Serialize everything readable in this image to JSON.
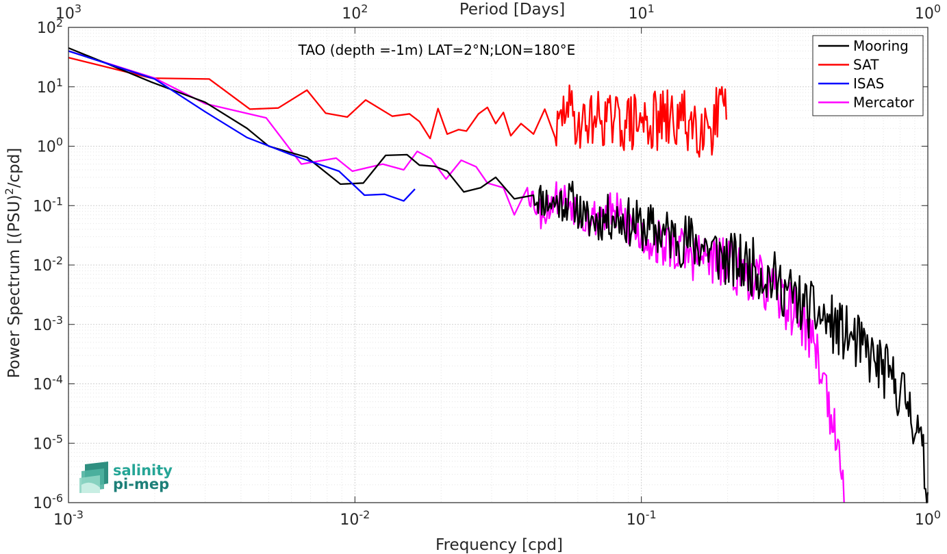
{
  "chart_data": {
    "type": "line",
    "title": "",
    "annotation": "TAO (depth =-1m) LAT=2°N;LON=180°E",
    "xlabel": "Frequency [cpd]",
    "ylabel": "Power Spectrum [(PSU)²/cpd]",
    "x2label": "Period [Days]",
    "xscale": "log",
    "yscale": "log",
    "xlim": [
      0.001,
      1
    ],
    "ylim": [
      1e-06,
      100
    ],
    "grid": true,
    "minor_grid": true,
    "legend_position": "top-right",
    "x_ticks": [
      {
        "value": 0.001,
        "base": "10",
        "exp": "-3"
      },
      {
        "value": 0.01,
        "base": "10",
        "exp": "-2"
      },
      {
        "value": 0.1,
        "base": "10",
        "exp": "-1"
      },
      {
        "value": 1,
        "base": "10",
        "exp": "0"
      }
    ],
    "x2_ticks": [
      {
        "value": 0.001,
        "base": "10",
        "exp": "3"
      },
      {
        "value": 0.01,
        "base": "10",
        "exp": "2"
      },
      {
        "value": 0.1,
        "base": "10",
        "exp": "1"
      },
      {
        "value": 1,
        "base": "10",
        "exp": "0"
      }
    ],
    "y_ticks": [
      {
        "value": 100,
        "base": "10",
        "exp": "2"
      },
      {
        "value": 10,
        "base": "10",
        "exp": "1"
      },
      {
        "value": 1,
        "base": "10",
        "exp": "0"
      },
      {
        "value": 0.1,
        "base": "10",
        "exp": "-1"
      },
      {
        "value": 0.01,
        "base": "10",
        "exp": "-2"
      },
      {
        "value": 0.001,
        "base": "10",
        "exp": "-3"
      },
      {
        "value": 0.0001,
        "base": "10",
        "exp": "-4"
      },
      {
        "value": 1e-05,
        "base": "10",
        "exp": "-5"
      },
      {
        "value": 1e-06,
        "base": "10",
        "exp": "-6"
      }
    ],
    "series": [
      {
        "name": "Mooring",
        "color": "#000000",
        "anchors": [
          [
            0.001,
            45
          ],
          [
            0.00135,
            25
          ],
          [
            0.00195,
            12
          ],
          [
            0.003,
            5.5
          ],
          [
            0.0042,
            2
          ],
          [
            0.005,
            1
          ],
          [
            0.0068,
            0.65
          ],
          [
            0.0089,
            0.23
          ],
          [
            0.0107,
            0.24
          ],
          [
            0.0128,
            0.7
          ],
          [
            0.0152,
            0.72
          ],
          [
            0.0168,
            0.48
          ],
          [
            0.019,
            0.46
          ],
          [
            0.021,
            0.38
          ],
          [
            0.024,
            0.17
          ],
          [
            0.0275,
            0.2
          ],
          [
            0.031,
            0.3
          ],
          [
            0.036,
            0.13
          ],
          [
            0.042,
            0.15
          ],
          [
            0.048,
            0.11
          ],
          [
            0.058,
            0.12
          ],
          [
            0.064,
            0.055
          ],
          [
            0.08,
            0.065
          ],
          [
            0.1,
            0.045
          ],
          [
            0.13,
            0.03
          ],
          [
            0.17,
            0.02
          ],
          [
            0.2,
            0.012
          ],
          [
            0.25,
            0.009
          ],
          [
            0.3,
            0.005
          ],
          [
            0.37,
            0.002
          ],
          [
            0.45,
            0.0011
          ],
          [
            0.55,
            0.00055
          ],
          [
            0.65,
            0.00025
          ],
          [
            0.75,
            0.00012
          ],
          [
            0.85,
            5e-05
          ],
          [
            0.93,
            1.5e-05
          ],
          [
            1,
            1.5e-06
          ]
        ],
        "noise_start": 0.04,
        "noise_amp": 0.5
      },
      {
        "name": "SAT",
        "color": "#ff0000",
        "anchors": [
          [
            0.001,
            31
          ],
          [
            0.00195,
            14
          ],
          [
            0.0031,
            13.5
          ],
          [
            0.0043,
            4.2
          ],
          [
            0.0054,
            4.4
          ],
          [
            0.0068,
            8.8
          ],
          [
            0.0079,
            3.6
          ],
          [
            0.0094,
            3.1
          ],
          [
            0.0109,
            6
          ],
          [
            0.0135,
            3.2
          ],
          [
            0.0155,
            3.5
          ],
          [
            0.0168,
            2.6
          ],
          [
            0.0183,
            1.35
          ],
          [
            0.0195,
            4.3
          ],
          [
            0.021,
            1.6
          ],
          [
            0.023,
            1.9
          ],
          [
            0.0245,
            1.8
          ],
          [
            0.027,
            3.5
          ],
          [
            0.029,
            4.5
          ],
          [
            0.031,
            2.4
          ],
          [
            0.033,
            3.7
          ],
          [
            0.035,
            1.5
          ],
          [
            0.038,
            2.4
          ],
          [
            0.042,
            1.6
          ],
          [
            0.046,
            4.2
          ],
          [
            0.05,
            1.4
          ],
          [
            0.055,
            5.5
          ],
          [
            0.06,
            2.2
          ],
          [
            0.07,
            3.2
          ],
          [
            0.08,
            2.5
          ],
          [
            0.1,
            2.5
          ],
          [
            0.12,
            2.6
          ],
          [
            0.14,
            2.7
          ],
          [
            0.17,
            2.6
          ],
          [
            0.198,
            2.8
          ]
        ],
        "noise_start": 0.05,
        "noise_amp": 0.65
      },
      {
        "name": "ISAS",
        "color": "#0000ff",
        "anchors": [
          [
            0.001,
            40
          ],
          [
            0.002,
            13.5
          ],
          [
            0.003,
            3.8
          ],
          [
            0.0042,
            1.4
          ],
          [
            0.006,
            0.72
          ],
          [
            0.0088,
            0.38
          ],
          [
            0.0108,
            0.15
          ],
          [
            0.0127,
            0.155
          ],
          [
            0.0148,
            0.12
          ],
          [
            0.0162,
            0.19
          ]
        ],
        "noise_start": 10,
        "noise_amp": 0
      },
      {
        "name": "Mercator",
        "color": "#ff00ff",
        "anchors": [
          [
            0.001,
            40
          ],
          [
            0.002,
            14
          ],
          [
            0.003,
            5.2
          ],
          [
            0.0049,
            3
          ],
          [
            0.0065,
            0.5
          ],
          [
            0.0086,
            0.63
          ],
          [
            0.0098,
            0.38
          ],
          [
            0.0125,
            0.5
          ],
          [
            0.0148,
            0.4
          ],
          [
            0.0165,
            0.82
          ],
          [
            0.0184,
            0.62
          ],
          [
            0.0208,
            0.28
          ],
          [
            0.0235,
            0.58
          ],
          [
            0.0265,
            0.45
          ],
          [
            0.029,
            0.24
          ],
          [
            0.033,
            0.2
          ],
          [
            0.036,
            0.07
          ],
          [
            0.04,
            0.2
          ],
          [
            0.045,
            0.07
          ],
          [
            0.05,
            0.14
          ],
          [
            0.055,
            0.13
          ],
          [
            0.065,
            0.06
          ],
          [
            0.08,
            0.08
          ],
          [
            0.1,
            0.03
          ],
          [
            0.15,
            0.015
          ],
          [
            0.2,
            0.01
          ],
          [
            0.25,
            0.006
          ],
          [
            0.3,
            0.003
          ],
          [
            0.35,
            0.0015
          ],
          [
            0.4,
            0.0005
          ],
          [
            0.43,
            0.00015
          ],
          [
            0.46,
            3e-05
          ],
          [
            0.48,
            8e-06
          ],
          [
            0.5,
            2.5e-06
          ],
          [
            0.51,
            1e-06
          ]
        ],
        "noise_start": 0.04,
        "noise_amp": 0.45
      }
    ]
  },
  "logo": {
    "line1": "salinity",
    "line2": "pi-mep"
  }
}
